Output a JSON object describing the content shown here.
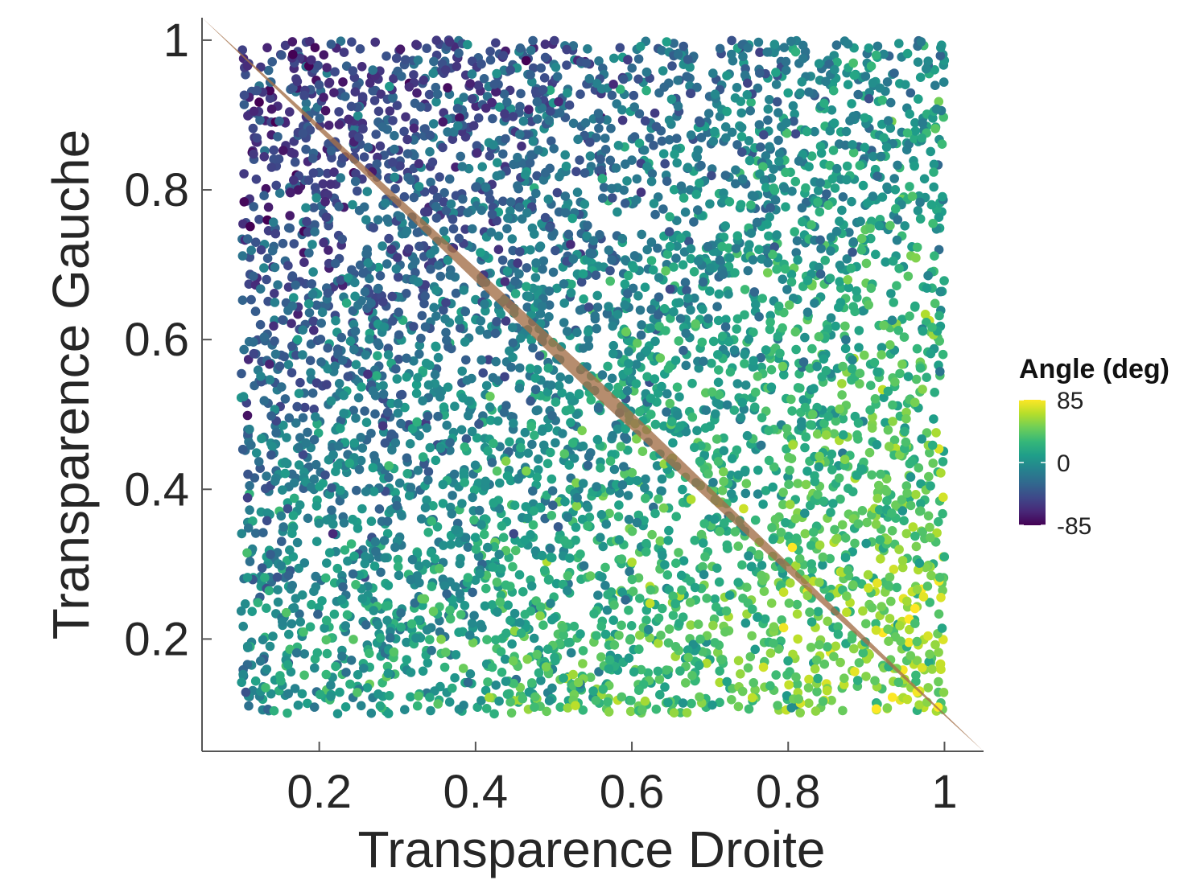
{
  "chart_data": {
    "type": "scatter",
    "title": "",
    "xlabel": "Transparence Droite",
    "ylabel": "Transparence Gauche",
    "xlim": [
      0.05,
      1.05
    ],
    "ylim": [
      0.05,
      1.03
    ],
    "x_ticks": [
      0.2,
      0.4,
      0.6,
      0.8,
      1
    ],
    "x_tick_labels": [
      "0.2",
      "0.4",
      "0.6",
      "0.8",
      "1"
    ],
    "y_ticks": [
      0.2,
      0.4,
      0.6,
      0.8,
      1
    ],
    "y_tick_labels": [
      "0.2",
      "0.4",
      "0.6",
      "0.8",
      "1"
    ],
    "grid": false,
    "point_count": 5000,
    "point_x_range": [
      0.1,
      1.0
    ],
    "point_y_range": [
      0.1,
      1.0
    ],
    "color_variable": "Angle (deg)",
    "colorbar": {
      "title": "Angle (deg)",
      "min": -85,
      "max": 85,
      "ticks": [
        85,
        0,
        -85
      ],
      "tick_labels": [
        "85",
        "0",
        "-85"
      ],
      "colormap": "viridis",
      "placement": "right"
    },
    "diagonal_band": {
      "from": [
        0.05,
        1.03
      ],
      "to": [
        1.05,
        0.05
      ],
      "color": "#a4714a",
      "opacity": 0.8
    },
    "colors": {
      "viridis": [
        "#440154",
        "#482878",
        "#3e4989",
        "#31688e",
        "#26828e",
        "#1f9e89",
        "#35b779",
        "#6ece58",
        "#b5de2b",
        "#fde725"
      ],
      "axis": "#555555"
    }
  }
}
